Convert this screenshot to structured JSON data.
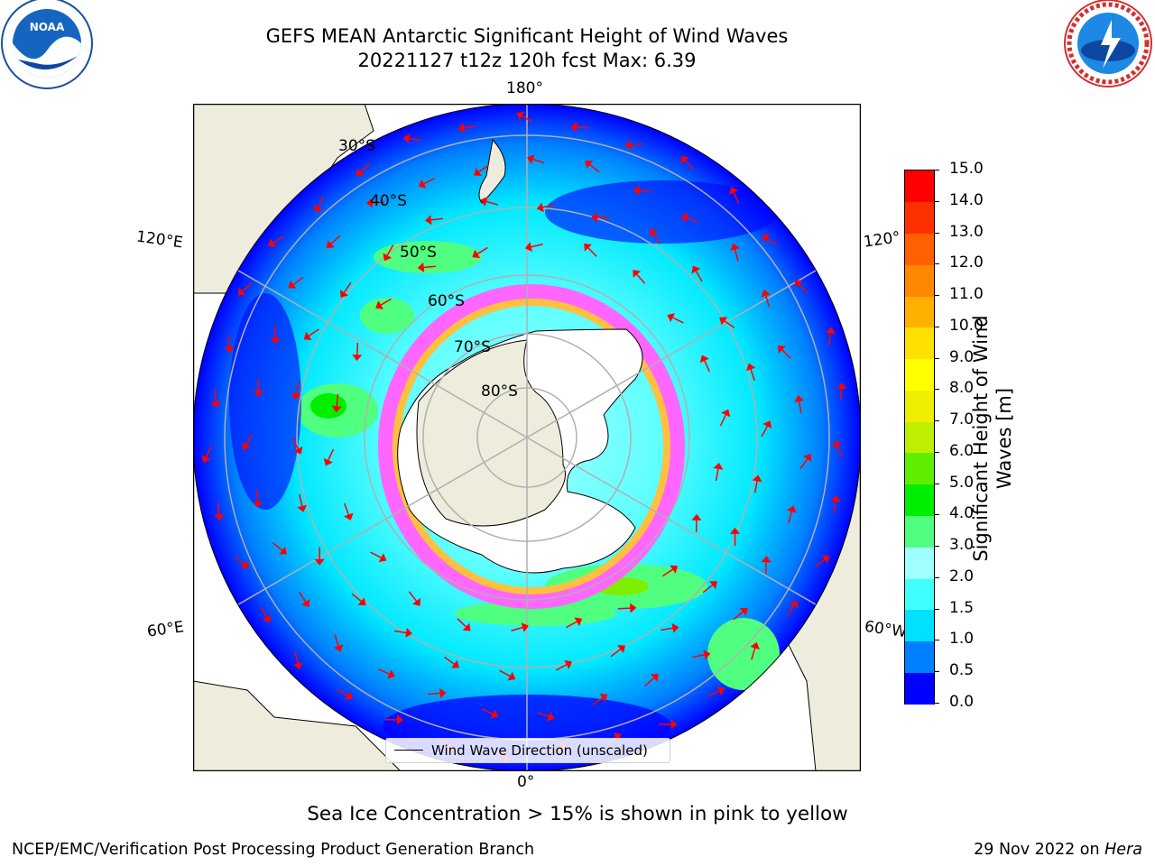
{
  "title_line1": "GEFS MEAN Antarctic Significant Height of Wind Waves",
  "title_line2": "20221127 t12z 120h fcst   Max: 6.39",
  "logos": {
    "left": {
      "icon": "noaa-logo",
      "text": "NOAA",
      "ring_text": "NATIONAL OCEANIC AND ATMOSPHERIC ADMINISTRATION · U.S. DEPARTMENT OF COMMERCE"
    },
    "right": {
      "icon": "nws-logo",
      "ring_text": "NATIONAL WEATHER SERVICE"
    }
  },
  "map": {
    "projection": "south-polar-stereographic",
    "longitude_labels": {
      "top": "180°",
      "bottom": "0°",
      "left_upper": "120°E",
      "left_lower": "60°E",
      "right_upper": "120°",
      "right_lower": "60°W"
    },
    "latitude_labels": [
      "30°S",
      "40°S",
      "50°S",
      "60°S",
      "70°S",
      "80°S"
    ],
    "legend_entry": "Wind Wave Direction (unscaled)",
    "colors": {
      "land": "#eeecdc",
      "ice": "#ffffff",
      "arrows": "#ff0000",
      "grid": "#b0b0b0"
    }
  },
  "colorbar": {
    "label": "Significant Height of Wind Waves [m]",
    "label_line1": "Significant Height of Wind",
    "label_line2": "Waves [m]",
    "ticks": [
      "0.0",
      "0.5",
      "1.0",
      "1.5",
      "2.0",
      "3.0",
      "4.0",
      "5.0",
      "6.0",
      "7.0",
      "8.0",
      "9.0",
      "10.0",
      "11.0",
      "12.0",
      "13.0",
      "14.0",
      "15.0"
    ],
    "colors": [
      "#0000ff",
      "#0080ff",
      "#00e0ff",
      "#40ffff",
      "#a0ffff",
      "#50ff80",
      "#00ee00",
      "#60ee00",
      "#c0ee00",
      "#eeee00",
      "#ffff00",
      "#ffe000",
      "#ffb000",
      "#ff8800",
      "#ff6000",
      "#ff3000",
      "#ff0000"
    ]
  },
  "sea_ice_note": "Sea Ice Concentration > 15% is shown in pink to yellow",
  "footer_left": "NCEP/EMC/Verification Post Processing Product Generation Branch",
  "footer_right_date": "29 Nov 2022 on ",
  "footer_right_machine": "Hera"
}
